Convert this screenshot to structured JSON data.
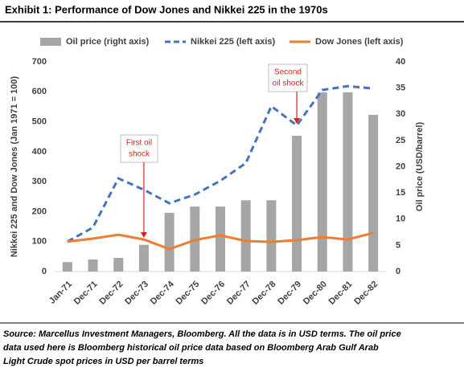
{
  "chart_data": {
    "type": "combo",
    "title": "Exhibit 1: Performance of Dow Jones and Nikkei 225 in the 1970s",
    "categories": [
      "Jan-71",
      "Dec-71",
      "Dec-72",
      "Dec-73",
      "Dec-74",
      "Dec-75",
      "Dec-76",
      "Dec-77",
      "Dec-78",
      "Dec-79",
      "Dec-80",
      "Dec-81",
      "Dec-82"
    ],
    "series": [
      {
        "name": "Oil price (right axis)",
        "kind": "bar",
        "axis": "y2",
        "color": "#a6a6a6",
        "values": [
          1.8,
          2.3,
          2.6,
          5.1,
          11.2,
          12.4,
          12.4,
          13.6,
          13.6,
          25.9,
          34.2,
          34.2,
          29.9
        ]
      },
      {
        "name": "Nikkei 225 (left axis)",
        "kind": "line",
        "dashed": true,
        "color": "#4472c4",
        "values": [
          100,
          147,
          311,
          273,
          228,
          257,
          303,
          362,
          552,
          488,
          606,
          619,
          611
        ]
      },
      {
        "name": "Dow Jones (left axis)",
        "kind": "line",
        "dashed": false,
        "color": "#ed7d31",
        "values": [
          100,
          110,
          123,
          107,
          75,
          105,
          121,
          102,
          99,
          105,
          115,
          107,
          129
        ]
      }
    ],
    "ylim": [
      0,
      700
    ],
    "yticks": [
      0,
      100,
      200,
      300,
      400,
      500,
      600,
      700
    ],
    "y2lim": [
      0,
      40
    ],
    "y2ticks": [
      0,
      5,
      10,
      15,
      20,
      25,
      30,
      35,
      40
    ],
    "ylabel": "Nikkei 225 and Dow Jones (Jan 1971 = 100)",
    "y2label": "Oil price (USD/barrel)",
    "annotations": [
      {
        "lines": [
          "First oil",
          "shock"
        ],
        "color": "#e02020"
      },
      {
        "lines": [
          "Second",
          "oil shock"
        ],
        "color": "#e02020"
      }
    ],
    "source": [
      "Source: Marcellus Investment Managers, Bloomberg. All the data is in USD terms. The oil price",
      "data used here is Bloomberg historical oil price data based on Bloomberg Arab Gulf Arab",
      "Light Crude spot prices in USD per barrel terms"
    ]
  }
}
